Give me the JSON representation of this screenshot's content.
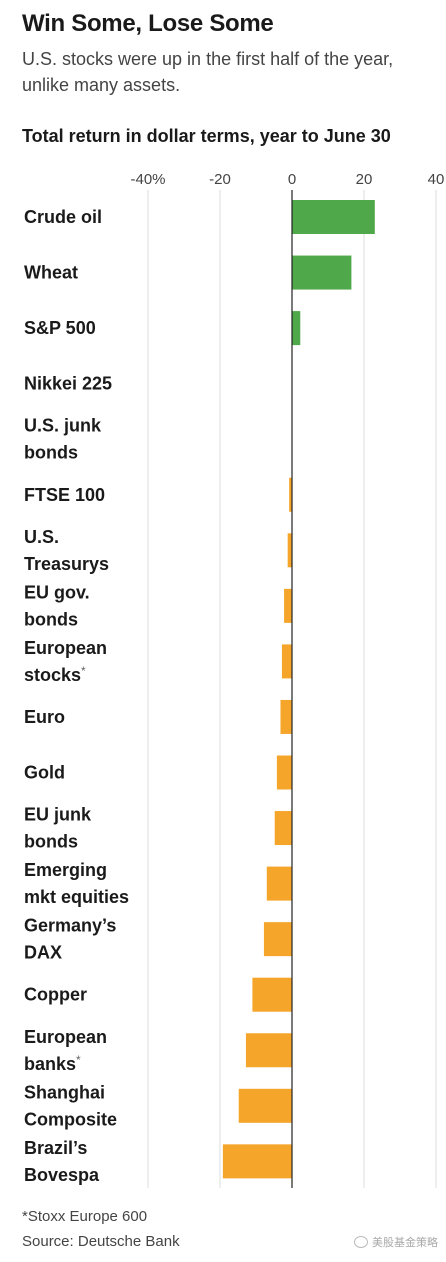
{
  "header": {
    "title": "Win Some, Lose Some",
    "subtitle": "U.S. stocks were up in the first half of the year, unlike many assets."
  },
  "chart_data": {
    "type": "bar",
    "orientation": "horizontal",
    "title": "Total return in dollar terms, year to June 30",
    "xlim": [
      -40,
      40
    ],
    "ticks": [
      -40,
      -20,
      0,
      20,
      40
    ],
    "tick_labels": [
      "-40%",
      "-20",
      "0",
      "20",
      "40"
    ],
    "grid": true,
    "categories": [
      {
        "label": [
          "Crude oil"
        ],
        "value": 23
      },
      {
        "label": [
          "Wheat"
        ],
        "value": 16.5
      },
      {
        "label": [
          "S&P 500"
        ],
        "value": 2.3
      },
      {
        "label": [
          "Nikkei 225"
        ],
        "value": 0
      },
      {
        "label": [
          "U.S. junk",
          "bonds"
        ],
        "value": 0
      },
      {
        "label": [
          "FTSE 100"
        ],
        "value": -0.8
      },
      {
        "label": [
          "U.S.",
          "Treasurys"
        ],
        "value": -1.2
      },
      {
        "label": [
          "EU gov.",
          "bonds"
        ],
        "value": -2.2
      },
      {
        "label": [
          "European",
          "stocks*"
        ],
        "value": -2.8
      },
      {
        "label": [
          "Euro"
        ],
        "value": -3.2
      },
      {
        "label": [
          "Gold"
        ],
        "value": -4.2
      },
      {
        "label": [
          "EU junk",
          "bonds"
        ],
        "value": -4.8
      },
      {
        "label": [
          "Emerging",
          "mkt equities"
        ],
        "value": -7.0
      },
      {
        "label": [
          "Germany’s",
          "DAX"
        ],
        "value": -7.8
      },
      {
        "label": [
          "Copper"
        ],
        "value": -11.0
      },
      {
        "label": [
          "European",
          "banks*"
        ],
        "value": -12.8
      },
      {
        "label": [
          "Shanghai",
          "Composite"
        ],
        "value": -14.8
      },
      {
        "label": [
          "Brazil’s",
          "Bovespa"
        ],
        "value": -19.2
      }
    ],
    "colors": {
      "positive": "#4fa84a",
      "negative": "#f5a52a",
      "grid": "#dddddd",
      "axis": "#222222"
    }
  },
  "footer": {
    "footnote": "*Stoxx Europe 600",
    "source": "Source: Deutsche Bank",
    "watermark": "美股基金策略"
  }
}
